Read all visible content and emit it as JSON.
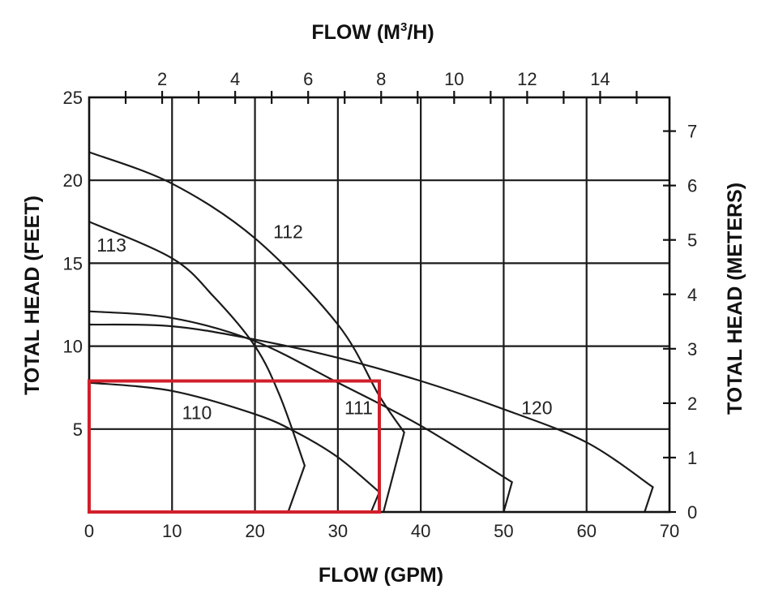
{
  "chart_data": {
    "type": "line",
    "title": "",
    "xlabel": "FLOW (GPM)",
    "x2label": "FLOW (M",
    "x2label_sup": "3",
    "x2label_suffix": "/H)",
    "ylabel": "TOTAL HEAD (FEET)",
    "y2label": "TOTAL HEAD (METERS)",
    "xlim": [
      0,
      70
    ],
    "ylim": [
      0,
      25
    ],
    "x2lim": [
      0,
      15.9
    ],
    "y2lim": [
      0,
      7.62
    ],
    "xticks": [
      0,
      10,
      20,
      30,
      40,
      50,
      60,
      70
    ],
    "yticks": [
      5,
      10,
      15,
      20,
      25
    ],
    "x2ticks": [
      2,
      4,
      6,
      8,
      10,
      12,
      14
    ],
    "x2minor": [
      1,
      3,
      5,
      7,
      9,
      11,
      13,
      15
    ],
    "y2ticks": [
      0,
      1,
      2,
      3,
      4,
      5,
      6,
      7
    ],
    "grid": true,
    "series": [
      {
        "name": "110",
        "x": [
          0,
          10,
          20,
          25,
          30,
          35,
          34
        ],
        "y": [
          7.8,
          7.3,
          5.9,
          4.8,
          3.3,
          1.2,
          0
        ]
      },
      {
        "name": "113",
        "x": [
          0,
          10,
          15,
          20,
          23,
          26,
          24
        ],
        "y": [
          17.5,
          15.3,
          13,
          10,
          7,
          2.8,
          0
        ]
      },
      {
        "name": "112",
        "x": [
          0,
          10,
          20,
          30,
          35,
          38,
          35.5
        ],
        "y": [
          21.7,
          19.8,
          16.5,
          11.3,
          7,
          4.8,
          0
        ]
      },
      {
        "name": "111",
        "x": [
          0,
          10,
          20,
          30,
          40,
          51,
          50
        ],
        "y": [
          12.1,
          11.7,
          10.3,
          7.8,
          5.2,
          1.8,
          0
        ]
      },
      {
        "name": "120",
        "x": [
          0,
          10,
          20,
          30,
          40,
          50,
          60,
          68,
          67
        ],
        "y": [
          11.3,
          11.2,
          10.4,
          9.3,
          7.9,
          6.2,
          4.2,
          1.5,
          0
        ]
      }
    ],
    "curve_labels": [
      {
        "text": "110",
        "x": 13,
        "y": 5.6
      },
      {
        "text": "113",
        "x": 2.7,
        "y": 15.7
      },
      {
        "text": "112",
        "x": 24,
        "y": 16.5
      },
      {
        "text": "111",
        "x": 32.5,
        "y": 5.9
      },
      {
        "text": "120",
        "x": 54,
        "y": 5.9
      }
    ],
    "highlight_box": {
      "x": [
        0,
        35
      ],
      "y": [
        0,
        7.9
      ],
      "color": "#d0202a"
    }
  }
}
